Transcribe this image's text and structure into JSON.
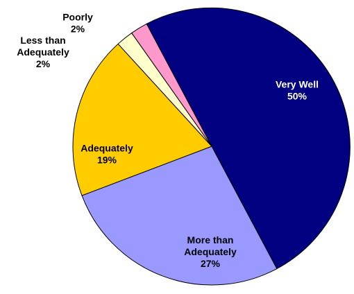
{
  "chart_data": {
    "type": "pie",
    "slices": [
      {
        "label": "Very Well",
        "label_lines": [
          "Very Well"
        ],
        "value_label": "50%",
        "value": 50,
        "color": "#000080",
        "text_color": "#ffffff"
      },
      {
        "label": "More than Adequately",
        "label_lines": [
          "More than",
          "Adequately"
        ],
        "value_label": "27%",
        "value": 27,
        "color": "#9999ff",
        "text_color": "#000000"
      },
      {
        "label": "Adequately",
        "label_lines": [
          "Adequately"
        ],
        "value_label": "19%",
        "value": 19,
        "color": "#ffcc00",
        "text_color": "#000000"
      },
      {
        "label": "Less than Adequately",
        "label_lines": [
          "Less than",
          "Adequately"
        ],
        "value_label": "2%",
        "value": 2,
        "color": "#ffffcc",
        "text_color": "#000000"
      },
      {
        "label": "Poorly",
        "label_lines": [
          "Poorly"
        ],
        "value_label": "2%",
        "value": 2,
        "color": "#ff99cc",
        "text_color": "#000000"
      }
    ],
    "start_angle_deg": -118,
    "direction": "clockwise"
  }
}
